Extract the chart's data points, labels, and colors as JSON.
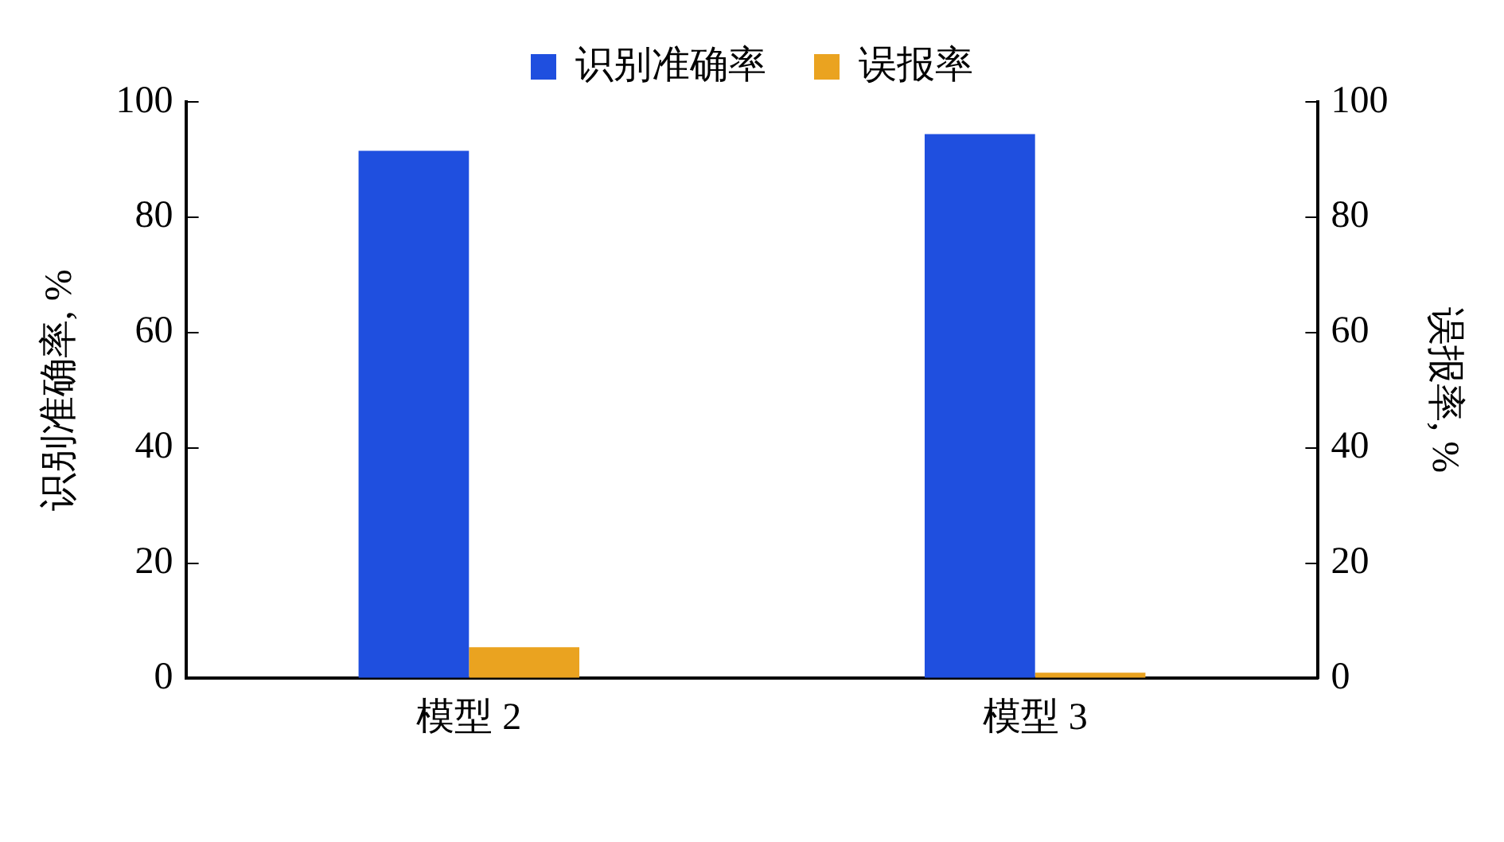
{
  "chart_data": {
    "type": "bar",
    "categories": [
      "模型 2",
      "模型 3"
    ],
    "series": [
      {
        "name": "识别准确率",
        "color": "#1f4fdf",
        "values": [
          91.5,
          94.4
        ]
      },
      {
        "name": "误报率",
        "color": "#eaa320",
        "values": [
          5.4,
          1.0
        ],
        "axis": "y2"
      }
    ],
    "ylabel": "识别准确率, %",
    "y2label": "误报率, %",
    "ylim": [
      0,
      100
    ],
    "yticks": [
      0,
      20,
      40,
      60,
      80,
      100
    ],
    "y2lim": [
      0,
      100
    ],
    "y2ticks": [
      0,
      20,
      40,
      60,
      80,
      100
    ],
    "grid": false,
    "legend": "top"
  }
}
